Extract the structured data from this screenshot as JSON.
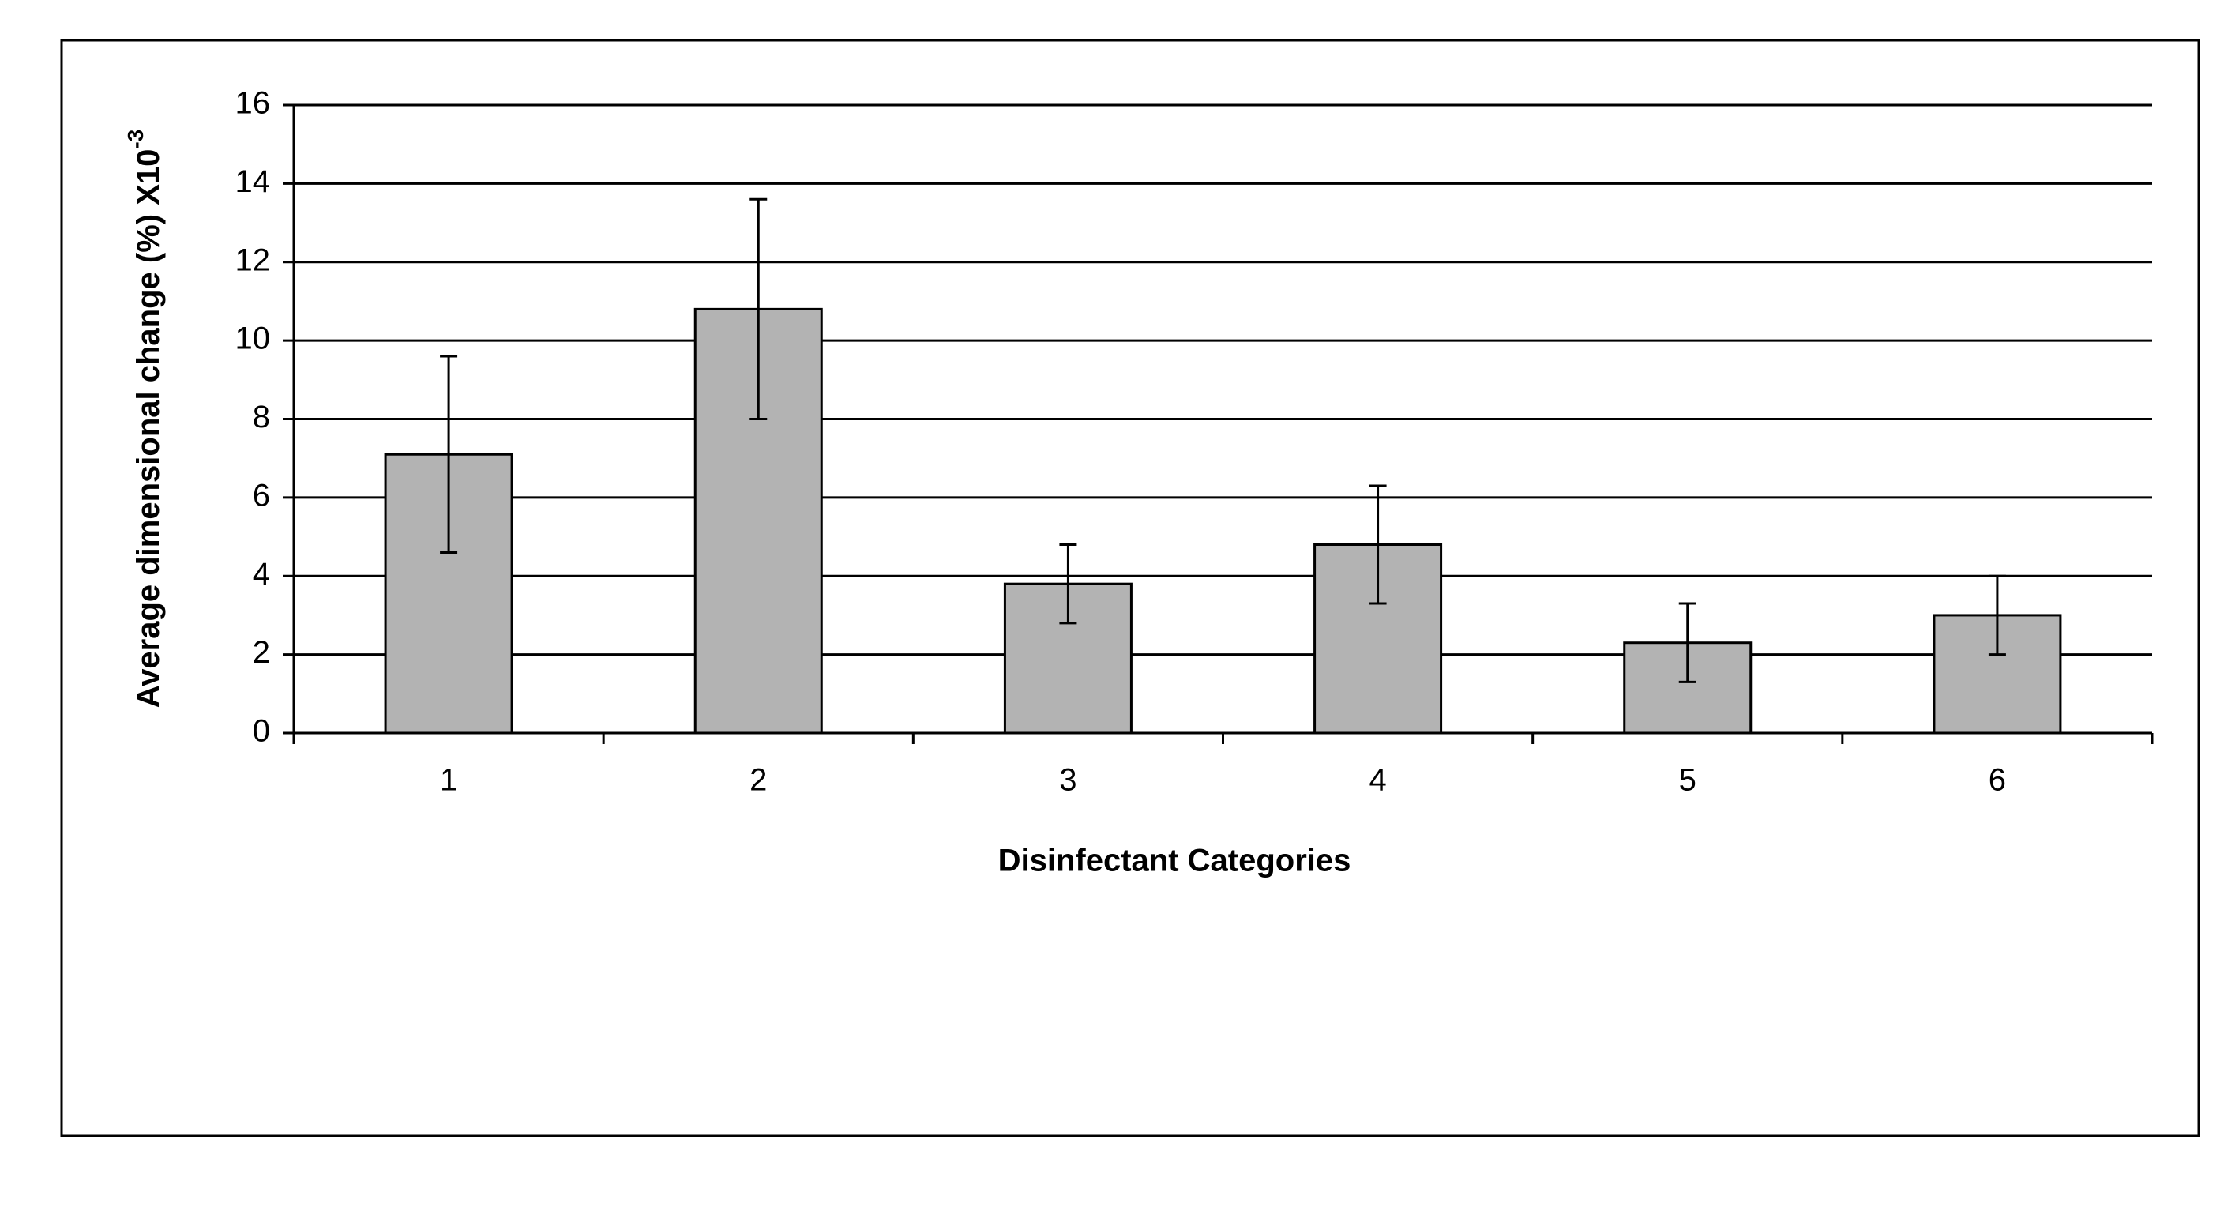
{
  "chart_data": {
    "type": "bar",
    "x_label": "Disinfectant Categories",
    "y_label": "Average dimensional change (%) X10",
    "y_label_superscript": "-3",
    "categories": [
      "1",
      "2",
      "3",
      "4",
      "5",
      "6"
    ],
    "values": [
      7.1,
      10.8,
      3.8,
      4.8,
      2.3,
      3.0
    ],
    "errors": [
      2.5,
      2.8,
      1.0,
      1.5,
      1.0,
      1.0
    ],
    "color": "#b3b3b3",
    "ylim": [
      0,
      16
    ],
    "yticks": [
      0,
      2,
      4,
      6,
      8,
      10,
      12,
      14,
      16
    ],
    "grid": true
  }
}
